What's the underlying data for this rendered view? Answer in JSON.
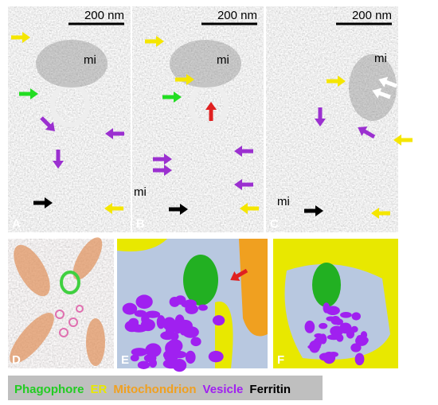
{
  "panels": [
    {
      "label": "A",
      "scale_bar": "200 nm",
      "mi_labels": [
        "mi"
      ]
    },
    {
      "label": "B",
      "scale_bar": "200 nm",
      "mi_labels": [
        "mi",
        "mi"
      ]
    },
    {
      "label": "C",
      "scale_bar": "200 nm",
      "mi_labels": [
        "mi",
        "mi"
      ]
    },
    {
      "label": "D"
    },
    {
      "label": "E"
    },
    {
      "label": "F"
    }
  ],
  "legend": [
    "Phagophore",
    "ER",
    "Mitochondrion",
    "Vesicle",
    "Ferritin"
  ]
}
